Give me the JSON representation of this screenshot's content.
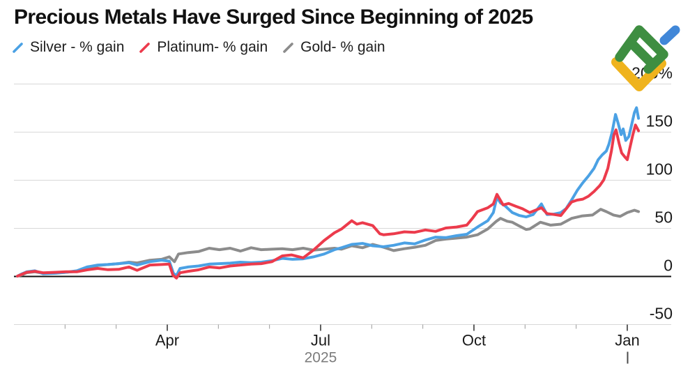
{
  "header": {
    "title": "Precious Metals Have Surged Since Beginning of 2025"
  },
  "legend": [
    {
      "label": "Silver - % gain",
      "color": "#4BA1E4",
      "icon": "blue-slash-icon"
    },
    {
      "label": "Platinum- % gain",
      "color": "#EC3B4C",
      "icon": "red-slash-icon"
    },
    {
      "label": "Gold- % gain",
      "color": "#8C8C8C",
      "icon": "gray-slash-icon"
    }
  ],
  "logo": {
    "green": "#3E8E41",
    "blue": "#4187D8",
    "yellow": "#EFB31D"
  },
  "chart_data": {
    "type": "line",
    "title": "Precious Metals Have Surged Since Beginning of 2025",
    "grid": true,
    "legend_position": "top-left",
    "x_axis": {
      "unit": "months-since-jan-2025",
      "range": [
        0,
        12.85
      ],
      "minor_tick_months": [
        1,
        2,
        4,
        5,
        7,
        8,
        10,
        11
      ],
      "major_ticks": [
        {
          "t": 3,
          "label": "Apr"
        },
        {
          "t": 6,
          "label": "Jul"
        },
        {
          "t": 9,
          "label": "Oct"
        },
        {
          "t": 12,
          "label": "Jan"
        }
      ],
      "year_label": "2025",
      "year_label_t": 6,
      "latest_marker_t": 12
    },
    "y_axis": {
      "range": [
        -50,
        200
      ],
      "side": "right",
      "ticks": [
        {
          "v": 200,
          "label": "200%"
        },
        {
          "v": 150,
          "label": "150"
        },
        {
          "v": 100,
          "label": "100"
        },
        {
          "v": 50,
          "label": "50"
        },
        {
          "v": 0,
          "label": "0"
        },
        {
          "v": -50,
          "label": "-50"
        }
      ]
    },
    "series": [
      {
        "name": "Silver - % gain",
        "color": "#4BA1E4",
        "points": [
          [
            0.07,
            0
          ],
          [
            0.14,
            2
          ],
          [
            0.25,
            4.5
          ],
          [
            0.41,
            5.5
          ],
          [
            0.57,
            2.5
          ],
          [
            0.82,
            3
          ],
          [
            1.02,
            4
          ],
          [
            1.23,
            5.5
          ],
          [
            1.43,
            9.5
          ],
          [
            1.64,
            11.5
          ],
          [
            1.84,
            12
          ],
          [
            2.05,
            13
          ],
          [
            2.25,
            14
          ],
          [
            2.41,
            11.5
          ],
          [
            2.66,
            15
          ],
          [
            2.89,
            16.5
          ],
          [
            3.04,
            15.5
          ],
          [
            3.12,
            3
          ],
          [
            3.18,
            0.5
          ],
          [
            3.25,
            8
          ],
          [
            3.41,
            9.5
          ],
          [
            3.61,
            10.5
          ],
          [
            3.82,
            12.5
          ],
          [
            4.02,
            13
          ],
          [
            4.23,
            13.5
          ],
          [
            4.43,
            14.5
          ],
          [
            4.64,
            14
          ],
          [
            4.84,
            14.5
          ],
          [
            5.05,
            16
          ],
          [
            5.25,
            18.5
          ],
          [
            5.45,
            17.5
          ],
          [
            5.66,
            18
          ],
          [
            5.86,
            20
          ],
          [
            6.07,
            23
          ],
          [
            6.27,
            27.5
          ],
          [
            6.41,
            29.5
          ],
          [
            6.61,
            33
          ],
          [
            6.82,
            34
          ],
          [
            7.02,
            31.5
          ],
          [
            7.23,
            30.5
          ],
          [
            7.43,
            32
          ],
          [
            7.64,
            34.5
          ],
          [
            7.84,
            33.5
          ],
          [
            8.05,
            37.5
          ],
          [
            8.25,
            40.5
          ],
          [
            8.45,
            40
          ],
          [
            8.66,
            42
          ],
          [
            8.86,
            43.5
          ],
          [
            9.07,
            51
          ],
          [
            9.27,
            57.5
          ],
          [
            9.38,
            66
          ],
          [
            9.45,
            82
          ],
          [
            9.52,
            76
          ],
          [
            9.61,
            73
          ],
          [
            9.75,
            66
          ],
          [
            9.89,
            63
          ],
          [
            10.02,
            61.5
          ],
          [
            10.16,
            64
          ],
          [
            10.32,
            75
          ],
          [
            10.43,
            64
          ],
          [
            10.57,
            64.5
          ],
          [
            10.7,
            66
          ],
          [
            10.8,
            70
          ],
          [
            10.91,
            79
          ],
          [
            11.02,
            89
          ],
          [
            11.13,
            97
          ],
          [
            11.24,
            104
          ],
          [
            11.35,
            112
          ],
          [
            11.43,
            121
          ],
          [
            11.51,
            126
          ],
          [
            11.59,
            130
          ],
          [
            11.64,
            137
          ],
          [
            11.7,
            149
          ],
          [
            11.77,
            168
          ],
          [
            11.82,
            159
          ],
          [
            11.88,
            147
          ],
          [
            11.92,
            153
          ],
          [
            11.97,
            141
          ],
          [
            12.03,
            145
          ],
          [
            12.08,
            156
          ],
          [
            12.14,
            170
          ],
          [
            12.18,
            175
          ],
          [
            12.22,
            164
          ]
        ]
      },
      {
        "name": "Platinum- % gain",
        "color": "#EC3B4C",
        "points": [
          [
            0.07,
            0
          ],
          [
            0.14,
            1.5
          ],
          [
            0.25,
            4
          ],
          [
            0.41,
            5
          ],
          [
            0.57,
            3.5
          ],
          [
            0.82,
            4
          ],
          [
            1.02,
            4.5
          ],
          [
            1.23,
            4.5
          ],
          [
            1.43,
            6.5
          ],
          [
            1.64,
            8
          ],
          [
            1.84,
            6.7
          ],
          [
            2.05,
            7
          ],
          [
            2.25,
            9.5
          ],
          [
            2.41,
            6
          ],
          [
            2.66,
            11.5
          ],
          [
            2.89,
            12
          ],
          [
            3.04,
            12.5
          ],
          [
            3.11,
            1
          ],
          [
            3.18,
            -2
          ],
          [
            3.25,
            3.5
          ],
          [
            3.41,
            5
          ],
          [
            3.61,
            6.5
          ],
          [
            3.82,
            9.5
          ],
          [
            4.02,
            8.5
          ],
          [
            4.23,
            10.5
          ],
          [
            4.43,
            11.5
          ],
          [
            4.64,
            12.5
          ],
          [
            4.84,
            13
          ],
          [
            5.05,
            15
          ],
          [
            5.25,
            21
          ],
          [
            5.43,
            22
          ],
          [
            5.66,
            19
          ],
          [
            5.86,
            27
          ],
          [
            6.07,
            37
          ],
          [
            6.27,
            45
          ],
          [
            6.41,
            49
          ],
          [
            6.61,
            57.5
          ],
          [
            6.71,
            54
          ],
          [
            6.82,
            55.5
          ],
          [
            7.02,
            52.5
          ],
          [
            7.16,
            44
          ],
          [
            7.23,
            43
          ],
          [
            7.43,
            44
          ],
          [
            7.64,
            46
          ],
          [
            7.84,
            45.5
          ],
          [
            8.05,
            48
          ],
          [
            8.25,
            46.5
          ],
          [
            8.45,
            50
          ],
          [
            8.66,
            51
          ],
          [
            8.86,
            53
          ],
          [
            8.97,
            60
          ],
          [
            9.07,
            67
          ],
          [
            9.27,
            71
          ],
          [
            9.38,
            75
          ],
          [
            9.45,
            85
          ],
          [
            9.57,
            74
          ],
          [
            9.68,
            75.5
          ],
          [
            9.82,
            72.5
          ],
          [
            9.95,
            70
          ],
          [
            10.09,
            66
          ],
          [
            10.32,
            71
          ],
          [
            10.43,
            65
          ],
          [
            10.57,
            64
          ],
          [
            10.7,
            63
          ],
          [
            10.91,
            77
          ],
          [
            11.02,
            79
          ],
          [
            11.13,
            80
          ],
          [
            11.24,
            83
          ],
          [
            11.35,
            88
          ],
          [
            11.46,
            94
          ],
          [
            11.54,
            100
          ],
          [
            11.62,
            112
          ],
          [
            11.69,
            130
          ],
          [
            11.74,
            147
          ],
          [
            11.78,
            152
          ],
          [
            11.84,
            138
          ],
          [
            11.89,
            128
          ],
          [
            11.95,
            124
          ],
          [
            12,
            121
          ],
          [
            12.05,
            133
          ],
          [
            12.11,
            147
          ],
          [
            12.16,
            157
          ],
          [
            12.22,
            151
          ]
        ]
      },
      {
        "name": "Gold- % gain",
        "color": "#8C8C8C",
        "points": [
          [
            0.07,
            0
          ],
          [
            0.14,
            1
          ],
          [
            0.25,
            3.5
          ],
          [
            0.41,
            4.5
          ],
          [
            0.57,
            3
          ],
          [
            0.82,
            3.5
          ],
          [
            1.02,
            4
          ],
          [
            1.23,
            5
          ],
          [
            1.43,
            8
          ],
          [
            1.64,
            11
          ],
          [
            1.84,
            12
          ],
          [
            2.05,
            13
          ],
          [
            2.25,
            14.5
          ],
          [
            2.41,
            13.7
          ],
          [
            2.66,
            16.5
          ],
          [
            2.89,
            17.5
          ],
          [
            3.04,
            20
          ],
          [
            3.14,
            15
          ],
          [
            3.22,
            23
          ],
          [
            3.41,
            24.5
          ],
          [
            3.61,
            25.5
          ],
          [
            3.82,
            29
          ],
          [
            4.02,
            27.5
          ],
          [
            4.23,
            29
          ],
          [
            4.43,
            26
          ],
          [
            4.64,
            29.5
          ],
          [
            4.84,
            27.5
          ],
          [
            5.05,
            28
          ],
          [
            5.25,
            28.5
          ],
          [
            5.45,
            27.5
          ],
          [
            5.66,
            29
          ],
          [
            5.86,
            27
          ],
          [
            6.07,
            28
          ],
          [
            6.27,
            29
          ],
          [
            6.41,
            28
          ],
          [
            6.61,
            31.5
          ],
          [
            6.82,
            29.5
          ],
          [
            7.02,
            33
          ],
          [
            7.23,
            30
          ],
          [
            7.43,
            26.5
          ],
          [
            7.64,
            28.5
          ],
          [
            7.84,
            30
          ],
          [
            8.05,
            32
          ],
          [
            8.25,
            37
          ],
          [
            8.45,
            38.5
          ],
          [
            8.66,
            39.5
          ],
          [
            8.86,
            40.5
          ],
          [
            9.07,
            43
          ],
          [
            9.27,
            49
          ],
          [
            9.44,
            57
          ],
          [
            9.52,
            60
          ],
          [
            9.65,
            57
          ],
          [
            9.75,
            56
          ],
          [
            9.89,
            52
          ],
          [
            10.02,
            48.5
          ],
          [
            10.09,
            49
          ],
          [
            10.3,
            56
          ],
          [
            10.5,
            53
          ],
          [
            10.7,
            54
          ],
          [
            10.91,
            60
          ],
          [
            11.11,
            62.5
          ],
          [
            11.32,
            63.5
          ],
          [
            11.48,
            69.5
          ],
          [
            11.59,
            67
          ],
          [
            11.73,
            63.5
          ],
          [
            11.86,
            62
          ],
          [
            12,
            66
          ],
          [
            12.14,
            68.5
          ],
          [
            12.22,
            67
          ]
        ]
      }
    ]
  }
}
